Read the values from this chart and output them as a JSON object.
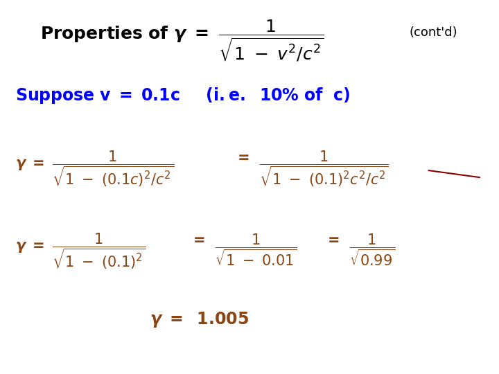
{
  "bg_color": "#ffffff",
  "black": "#000000",
  "blue": "#0000ff",
  "brown": "#8B4513",
  "fig_width": 7.2,
  "fig_height": 5.4,
  "dpi": 100,
  "fs_title": 18,
  "fs_suppose": 17,
  "fs_body": 15,
  "fs_contd": 13,
  "fs_result": 17
}
